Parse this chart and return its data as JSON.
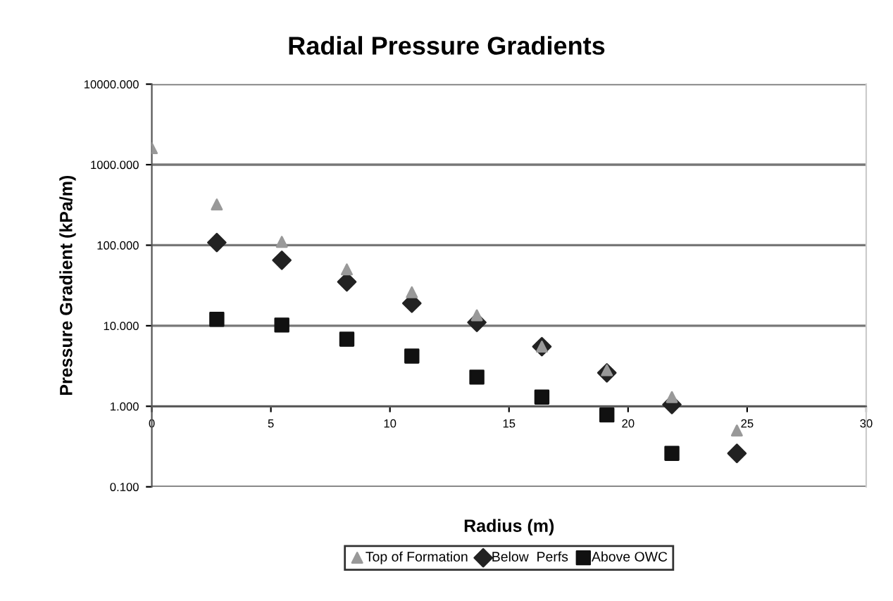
{
  "chart_data": {
    "type": "scatter",
    "title": "Radial Pressure Gradients",
    "xlabel": "Radius (m)",
    "ylabel": "Pressure Gradient (kPa/m)",
    "x": [
      0,
      2.73,
      5.46,
      8.19,
      10.92,
      13.65,
      16.38,
      19.11,
      21.84,
      24.57
    ],
    "series": [
      {
        "name": "Top of Formation",
        "color": "#999999",
        "marker": "triangle",
        "values": [
          1600,
          320,
          110,
          50,
          26,
          13.5,
          5.5,
          2.8,
          1.3,
          0.5
        ]
      },
      {
        "name": "Below  Perfs",
        "color": "#222222",
        "marker": "diamond",
        "values": [
          null,
          108,
          65,
          35,
          19,
          11,
          5.5,
          2.6,
          1.05,
          0.26
        ]
      },
      {
        "name": "Above OWC",
        "color": "#111111",
        "marker": "square",
        "values": [
          null,
          12,
          10.2,
          6.8,
          4.2,
          2.3,
          1.3,
          0.78,
          0.26,
          null
        ]
      }
    ],
    "log": "y",
    "xlim": [
      0,
      30
    ],
    "xticks": [
      0,
      5,
      10,
      15,
      20,
      25,
      30
    ],
    "ylim": [
      0.1,
      10000
    ],
    "yticks": [
      {
        "value": 0.1,
        "label": "0.100"
      },
      {
        "value": 1,
        "label": "1.000"
      },
      {
        "value": 10,
        "label": "10.000"
      },
      {
        "value": 100,
        "label": "100.000"
      },
      {
        "value": 1000,
        "label": "1000.000"
      },
      {
        "value": 10000,
        "label": "10000.000"
      }
    ],
    "grid": "y",
    "legend": "bottom"
  }
}
